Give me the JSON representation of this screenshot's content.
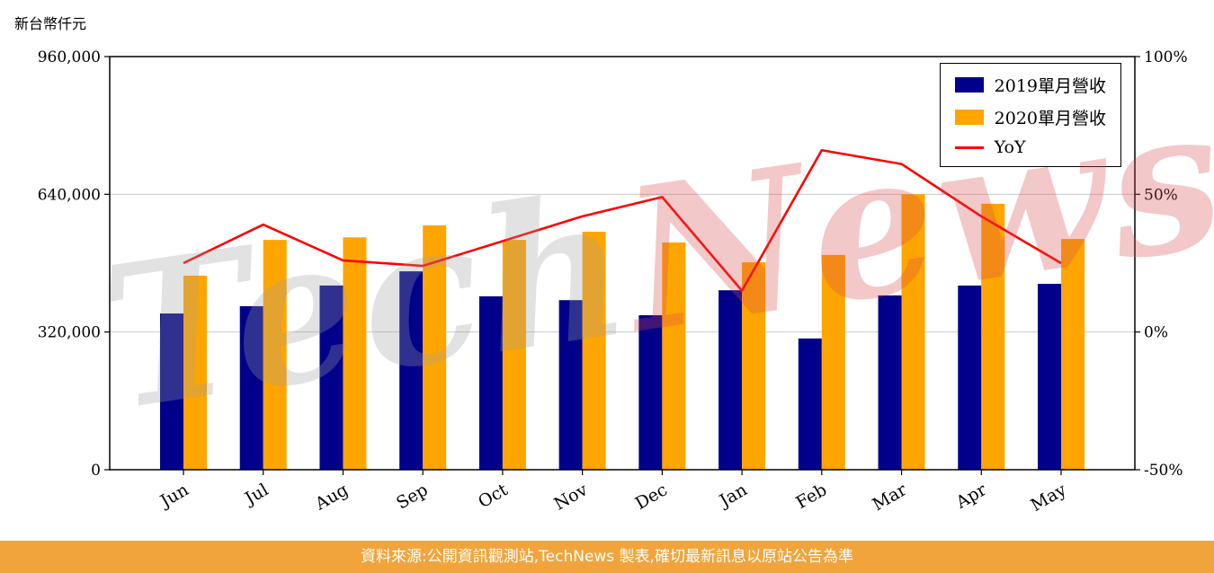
{
  "chart_data": {
    "type": "bar",
    "title": "",
    "unit_label": "新台幣仟元",
    "categories": [
      "Jun",
      "Jul",
      "Aug",
      "Sep",
      "Oct",
      "Nov",
      "Dec",
      "Jan",
      "Feb",
      "Mar",
      "Apr",
      "May"
    ],
    "series": [
      {
        "name": "2019單月營收",
        "type": "bar",
        "axis": "left",
        "color": "#00008B",
        "values": [
          363000,
          380000,
          428000,
          461000,
          403000,
          394000,
          359000,
          417000,
          305000,
          405000,
          428000,
          432000
        ]
      },
      {
        "name": "2020單月營收",
        "type": "bar",
        "axis": "left",
        "color": "#FFA500",
        "values": [
          451000,
          534000,
          540000,
          568000,
          534000,
          553000,
          528000,
          482000,
          499000,
          640000,
          618000,
          536000
        ]
      },
      {
        "name": "YoY",
        "type": "line",
        "axis": "right",
        "color": "#FF0000",
        "values": [
          25,
          39,
          26,
          24,
          33,
          42,
          49,
          15,
          66,
          61,
          42,
          25
        ]
      }
    ],
    "left_axis": {
      "min": 0,
      "max": 960000,
      "tick_values": [
        0,
        320000,
        640000,
        960000
      ],
      "tick_labels": [
        "0",
        "320,000",
        "640,000",
        "960,000"
      ]
    },
    "right_axis": {
      "min": -50,
      "max": 100,
      "tick_values": [
        -50,
        0,
        50,
        100
      ],
      "tick_labels": [
        "-50%",
        "0%",
        "50%",
        "100%"
      ]
    },
    "grid": true,
    "legend_position": "top-right"
  },
  "watermark": {
    "tech": "Tech",
    "news": "News"
  },
  "footer": {
    "text": "資料來源:公開資訊觀測站,TechNews 製表,確切最新訊息以原站公告為準"
  }
}
